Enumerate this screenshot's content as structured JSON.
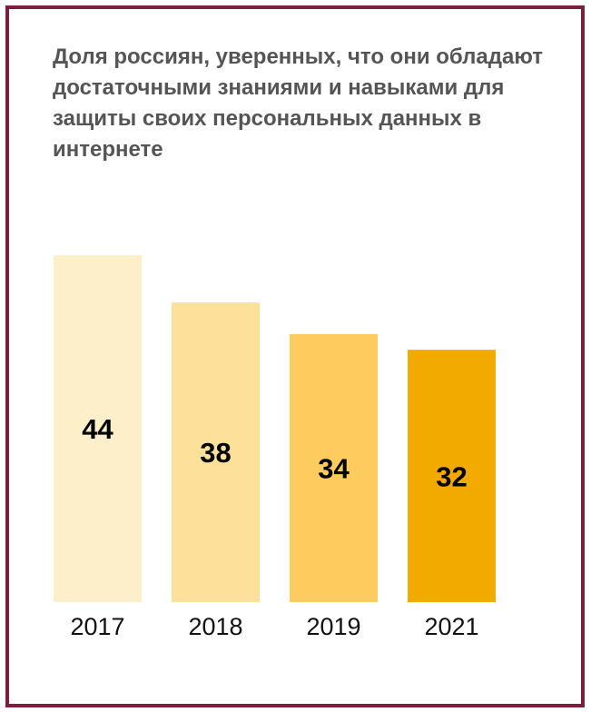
{
  "chart_data": {
    "type": "bar",
    "title": "Доля россиян, уверенных, что они обладают достаточными знаниями и навыками для защиты своих персональных данных в интернете",
    "categories": [
      "2017",
      "2018",
      "2019",
      "2021"
    ],
    "values": [
      44,
      38,
      34,
      32
    ],
    "colors": [
      "#fdefc9",
      "#fde09a",
      "#fdcb5e",
      "#f2a900"
    ]
  }
}
